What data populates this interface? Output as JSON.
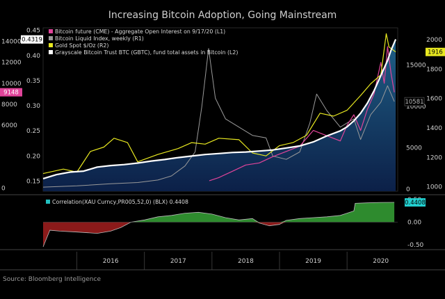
{
  "title": "Increasing Bitcoin Adoption, Going Mainstream",
  "footer_text": "Source: Bloomberg Intelligence",
  "chart_data": [
    {
      "type": "line",
      "panel": "main",
      "x_tick_labels": [
        "2016",
        "2017",
        "2018",
        "2019",
        "2020"
      ],
      "xlim": [
        2015.5,
        2020.75
      ],
      "axes": {
        "L1": {
          "ticks": [
            0,
            2000,
            4000,
            6000,
            8000,
            10000,
            12000,
            14000
          ],
          "tick_labels": [
            "0",
            "",
            "",
            "6000",
            "8000",
            "10000",
            "12000",
            "14000"
          ],
          "ylim": [
            -300,
            15300
          ]
        },
        "L2": {
          "ticks": [
            0.15,
            0.2,
            0.25,
            0.3,
            0.35,
            0.4,
            0.45
          ],
          "tick_labels": [
            "0.15",
            "0.20",
            "0.25",
            "0.30",
            "0.35",
            "0.40",
            "0.45"
          ],
          "ylim": [
            0.13,
            0.455
          ]
        },
        "R1": {
          "ticks": [
            0,
            5000,
            10000,
            15000
          ],
          "tick_labels": [
            "0",
            "5000",
            "10000",
            "15000"
          ],
          "ylim": [
            -250,
            19500
          ]
        },
        "R2": {
          "ticks": [
            1000,
            1200,
            1400,
            1600,
            1800,
            2000
          ],
          "tick_labels": [
            "1000",
            "1200",
            "1400",
            "1600",
            "1800",
            "2000"
          ],
          "ylim": [
            970,
            2080
          ]
        }
      },
      "legend": [
        {
          "label": "Bitcoin future (CME) - Aggregate Open Interest on 9/17/20 (L1)",
          "color": "#e0449a"
        },
        {
          "label": "Bitcoin Liquid Index, weekly (R1)",
          "color": "#9a9a9a"
        },
        {
          "label": "Gold Spot $/Oz (R2)",
          "color": "#e8e820"
        },
        {
          "label": "Grayscale Bitcoin Trust BTC (GBTC), fund total assets in Bitcoin (L2)",
          "color": "#ffffff"
        }
      ],
      "value_badges": [
        {
          "text": "0.4319",
          "axis": "L2",
          "bg": "#ffffff",
          "fg": "#000000"
        },
        {
          "text": "9148",
          "axis": "L1",
          "bg": "#e0449a",
          "fg": "#ffffff"
        },
        {
          "text": "10581",
          "axis": "R1",
          "bg": "#000000",
          "fg": "#bbbbbb"
        },
        {
          "text": "1916",
          "axis": "R2",
          "bg": "#e8e820",
          "fg": "#000000"
        }
      ],
      "series": [
        {
          "name": "Grayscale Bitcoin Trust BTC (GBTC), fund total assets in Bitcoin (L2)",
          "axis": "L2",
          "color": "#ffffff",
          "fill": true,
          "x": [
            2015.5,
            2015.7,
            2015.9,
            2016.1,
            2016.3,
            2016.5,
            2016.7,
            2016.9,
            2017.1,
            2017.3,
            2017.5,
            2017.7,
            2017.9,
            2018.1,
            2018.3,
            2018.5,
            2018.7,
            2018.9,
            2019.1,
            2019.3,
            2019.5,
            2019.7,
            2019.9,
            2020.0,
            2020.1,
            2020.2,
            2020.3,
            2020.4,
            2020.5,
            2020.6,
            2020.65,
            2020.72
          ],
          "values": [
            0.155,
            0.163,
            0.168,
            0.17,
            0.178,
            0.181,
            0.183,
            0.186,
            0.19,
            0.193,
            0.197,
            0.2,
            0.203,
            0.205,
            0.207,
            0.208,
            0.21,
            0.212,
            0.216,
            0.22,
            0.228,
            0.24,
            0.25,
            0.258,
            0.27,
            0.285,
            0.305,
            0.33,
            0.36,
            0.39,
            0.41,
            0.432
          ]
        },
        {
          "name": "Bitcoin Liquid Index, weekly (R1)",
          "axis": "R1",
          "color": "#9a9a9a",
          "x": [
            2015.5,
            2016.0,
            2016.5,
            2016.9,
            2017.2,
            2017.4,
            2017.6,
            2017.75,
            2017.85,
            2017.95,
            2018.05,
            2018.2,
            2018.4,
            2018.6,
            2018.8,
            2018.9,
            2019.1,
            2019.3,
            2019.45,
            2019.55,
            2019.7,
            2019.9,
            2020.1,
            2020.2,
            2020.35,
            2020.5,
            2020.6,
            2020.7
          ],
          "values": [
            250,
            400,
            650,
            800,
            1100,
            1600,
            2800,
            4500,
            10000,
            17000,
            11000,
            8500,
            7500,
            6500,
            6200,
            4000,
            3600,
            4500,
            8000,
            11500,
            9500,
            7500,
            8500,
            6000,
            9000,
            10500,
            12500,
            10581
          ]
        },
        {
          "name": "Gold Spot $/Oz (R2)",
          "axis": "R2",
          "color": "#e8e820",
          "x": [
            2015.5,
            2015.8,
            2016.0,
            2016.2,
            2016.4,
            2016.55,
            2016.75,
            2016.9,
            2017.2,
            2017.5,
            2017.7,
            2017.9,
            2018.1,
            2018.4,
            2018.6,
            2018.8,
            2019.0,
            2019.2,
            2019.4,
            2019.6,
            2019.8,
            2020.0,
            2020.2,
            2020.35,
            2020.5,
            2020.58,
            2020.62,
            2020.72
          ],
          "values": [
            1090,
            1120,
            1100,
            1240,
            1270,
            1330,
            1300,
            1170,
            1220,
            1260,
            1300,
            1290,
            1330,
            1320,
            1230,
            1210,
            1280,
            1300,
            1350,
            1500,
            1480,
            1520,
            1620,
            1700,
            1760,
            2040,
            1950,
            1916
          ]
        },
        {
          "name": "Bitcoin future (CME) - Aggregate Open Interest on 9/17/20 (L1)",
          "axis": "L1",
          "color": "#e0449a",
          "x": [
            2017.96,
            2018.1,
            2018.3,
            2018.5,
            2018.7,
            2018.9,
            2019.1,
            2019.3,
            2019.5,
            2019.7,
            2019.9,
            2020.0,
            2020.1,
            2020.2,
            2020.3,
            2020.4,
            2020.5,
            2020.55,
            2020.6,
            2020.65,
            2020.7
          ],
          "values": [
            700,
            1000,
            1600,
            2200,
            2400,
            3000,
            3500,
            4000,
            5500,
            5000,
            4500,
            6000,
            7000,
            5500,
            7500,
            9000,
            12000,
            10000,
            13500,
            11000,
            9148
          ]
        }
      ]
    },
    {
      "type": "area",
      "panel": "correlation",
      "x_tick_labels": [
        "2016",
        "2017",
        "2018",
        "2019",
        "2020"
      ],
      "xlim": [
        2015.5,
        2020.75
      ],
      "yticks": [
        0.5,
        0.0,
        -0.5
      ],
      "ytick_labels": [
        "0.50",
        "0.00",
        "-0.50"
      ],
      "ylim": [
        -0.55,
        0.55
      ],
      "legend": [
        {
          "label": "Correlation(XAU Curncy,PR005,52,0) (BLX) 0.4408",
          "color": "#22c0c0"
        }
      ],
      "value_badge": {
        "text": "0.4408",
        "bg": "#22d0d0",
        "fg": "#000000"
      },
      "positive_color": "#2e8b2e",
      "negative_color": "#8b1a1a",
      "series": [
        {
          "name": "Correlation(XAU Curncy,PR005,52,0) (BLX) 0.4408",
          "x": [
            2015.5,
            2015.6,
            2015.75,
            2016.0,
            2016.3,
            2016.5,
            2016.65,
            2016.8,
            2017.0,
            2017.2,
            2017.4,
            2017.6,
            2017.8,
            2018.0,
            2018.2,
            2018.4,
            2018.6,
            2018.7,
            2018.85,
            2019.0,
            2019.1,
            2019.3,
            2019.5,
            2019.7,
            2019.9,
            2020.0,
            2020.1,
            2020.12,
            2020.3,
            2020.5,
            2020.7
          ],
          "values": [
            -0.55,
            -0.18,
            -0.2,
            -0.22,
            -0.25,
            -0.2,
            -0.12,
            0.0,
            0.05,
            0.12,
            0.15,
            0.2,
            0.22,
            0.18,
            0.1,
            0.05,
            0.08,
            -0.02,
            -0.08,
            -0.05,
            0.04,
            0.08,
            0.1,
            0.12,
            0.15,
            0.2,
            0.25,
            0.42,
            0.43,
            0.44,
            0.4408
          ]
        }
      ]
    }
  ]
}
